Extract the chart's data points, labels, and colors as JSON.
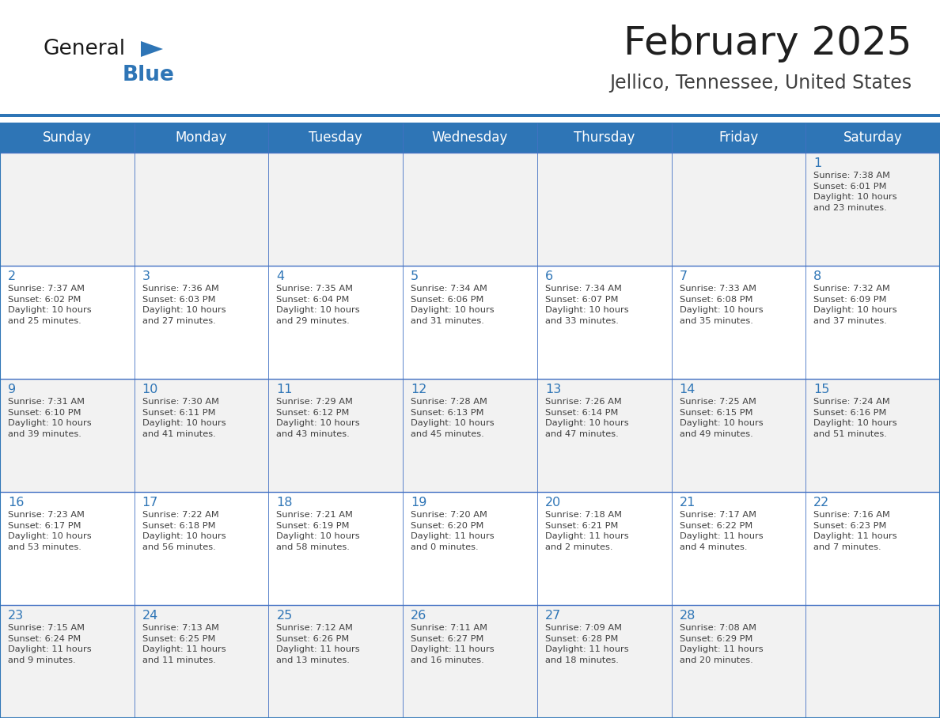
{
  "title": "February 2025",
  "subtitle": "Jellico, Tennessee, United States",
  "header_bg": "#2E75B6",
  "header_text_color": "#FFFFFF",
  "cell_bg_odd": "#F2F2F2",
  "cell_bg_even": "#FFFFFF",
  "border_color": "#2E75B6",
  "thin_line_color": "#4472C4",
  "day_names": [
    "Sunday",
    "Monday",
    "Tuesday",
    "Wednesday",
    "Thursday",
    "Friday",
    "Saturday"
  ],
  "title_color": "#1F1F1F",
  "subtitle_color": "#404040",
  "day_number_color": "#2E75B6",
  "cell_text_color": "#404040",
  "logo_general_color": "#1A1A1A",
  "logo_blue_color": "#2E75B6",
  "calendar": [
    [
      null,
      null,
      null,
      null,
      null,
      null,
      {
        "day": "1",
        "sunrise": "7:38 AM",
        "sunset": "6:01 PM",
        "daylight": "10 hours\nand 23 minutes."
      }
    ],
    [
      {
        "day": "2",
        "sunrise": "7:37 AM",
        "sunset": "6:02 PM",
        "daylight": "10 hours\nand 25 minutes."
      },
      {
        "day": "3",
        "sunrise": "7:36 AM",
        "sunset": "6:03 PM",
        "daylight": "10 hours\nand 27 minutes."
      },
      {
        "day": "4",
        "sunrise": "7:35 AM",
        "sunset": "6:04 PM",
        "daylight": "10 hours\nand 29 minutes."
      },
      {
        "day": "5",
        "sunrise": "7:34 AM",
        "sunset": "6:06 PM",
        "daylight": "10 hours\nand 31 minutes."
      },
      {
        "day": "6",
        "sunrise": "7:34 AM",
        "sunset": "6:07 PM",
        "daylight": "10 hours\nand 33 minutes."
      },
      {
        "day": "7",
        "sunrise": "7:33 AM",
        "sunset": "6:08 PM",
        "daylight": "10 hours\nand 35 minutes."
      },
      {
        "day": "8",
        "sunrise": "7:32 AM",
        "sunset": "6:09 PM",
        "daylight": "10 hours\nand 37 minutes."
      }
    ],
    [
      {
        "day": "9",
        "sunrise": "7:31 AM",
        "sunset": "6:10 PM",
        "daylight": "10 hours\nand 39 minutes."
      },
      {
        "day": "10",
        "sunrise": "7:30 AM",
        "sunset": "6:11 PM",
        "daylight": "10 hours\nand 41 minutes."
      },
      {
        "day": "11",
        "sunrise": "7:29 AM",
        "sunset": "6:12 PM",
        "daylight": "10 hours\nand 43 minutes."
      },
      {
        "day": "12",
        "sunrise": "7:28 AM",
        "sunset": "6:13 PM",
        "daylight": "10 hours\nand 45 minutes."
      },
      {
        "day": "13",
        "sunrise": "7:26 AM",
        "sunset": "6:14 PM",
        "daylight": "10 hours\nand 47 minutes."
      },
      {
        "day": "14",
        "sunrise": "7:25 AM",
        "sunset": "6:15 PM",
        "daylight": "10 hours\nand 49 minutes."
      },
      {
        "day": "15",
        "sunrise": "7:24 AM",
        "sunset": "6:16 PM",
        "daylight": "10 hours\nand 51 minutes."
      }
    ],
    [
      {
        "day": "16",
        "sunrise": "7:23 AM",
        "sunset": "6:17 PM",
        "daylight": "10 hours\nand 53 minutes."
      },
      {
        "day": "17",
        "sunrise": "7:22 AM",
        "sunset": "6:18 PM",
        "daylight": "10 hours\nand 56 minutes."
      },
      {
        "day": "18",
        "sunrise": "7:21 AM",
        "sunset": "6:19 PM",
        "daylight": "10 hours\nand 58 minutes."
      },
      {
        "day": "19",
        "sunrise": "7:20 AM",
        "sunset": "6:20 PM",
        "daylight": "11 hours\nand 0 minutes."
      },
      {
        "day": "20",
        "sunrise": "7:18 AM",
        "sunset": "6:21 PM",
        "daylight": "11 hours\nand 2 minutes."
      },
      {
        "day": "21",
        "sunrise": "7:17 AM",
        "sunset": "6:22 PM",
        "daylight": "11 hours\nand 4 minutes."
      },
      {
        "day": "22",
        "sunrise": "7:16 AM",
        "sunset": "6:23 PM",
        "daylight": "11 hours\nand 7 minutes."
      }
    ],
    [
      {
        "day": "23",
        "sunrise": "7:15 AM",
        "sunset": "6:24 PM",
        "daylight": "11 hours\nand 9 minutes."
      },
      {
        "day": "24",
        "sunrise": "7:13 AM",
        "sunset": "6:25 PM",
        "daylight": "11 hours\nand 11 minutes."
      },
      {
        "day": "25",
        "sunrise": "7:12 AM",
        "sunset": "6:26 PM",
        "daylight": "11 hours\nand 13 minutes."
      },
      {
        "day": "26",
        "sunrise": "7:11 AM",
        "sunset": "6:27 PM",
        "daylight": "11 hours\nand 16 minutes."
      },
      {
        "day": "27",
        "sunrise": "7:09 AM",
        "sunset": "6:28 PM",
        "daylight": "11 hours\nand 18 minutes."
      },
      {
        "day": "28",
        "sunrise": "7:08 AM",
        "sunset": "6:29 PM",
        "daylight": "11 hours\nand 20 minutes."
      },
      null
    ]
  ]
}
